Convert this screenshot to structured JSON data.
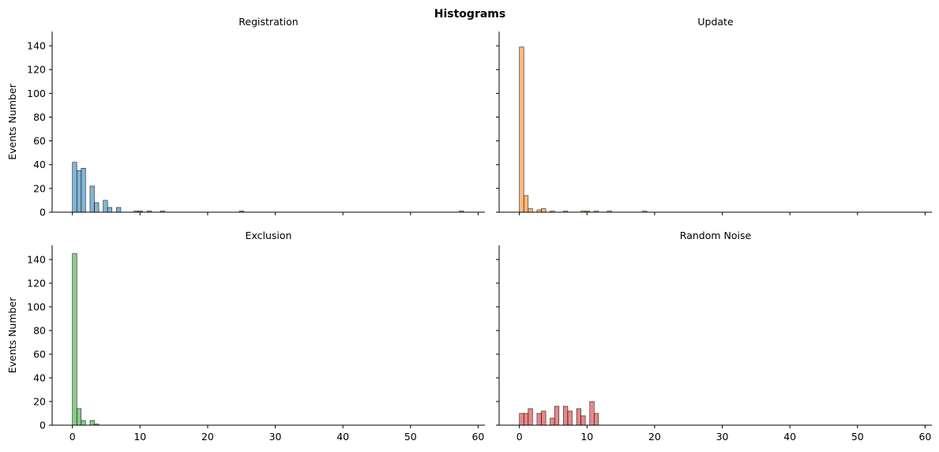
{
  "figure": {
    "title": "Histograms"
  },
  "chart_data": [
    {
      "type": "bar",
      "title": "Registration",
      "ylabel": "Events Number",
      "xlabel": "",
      "xlim": [
        -3,
        61
      ],
      "ylim": [
        0,
        152
      ],
      "xticks": [
        0,
        10,
        20,
        30,
        40,
        50,
        60
      ],
      "yticks": [
        0,
        20,
        40,
        60,
        80,
        100,
        120,
        140
      ],
      "color": "#1f77b4",
      "bin_width": 0.65,
      "bins": [
        {
          "x": 0,
          "count": 42
        },
        {
          "x": 0.65,
          "count": 35
        },
        {
          "x": 1.3,
          "count": 37
        },
        {
          "x": 2.6,
          "count": 22
        },
        {
          "x": 3.25,
          "count": 8
        },
        {
          "x": 4.55,
          "count": 10
        },
        {
          "x": 5.2,
          "count": 4
        },
        {
          "x": 6.5,
          "count": 4
        },
        {
          "x": 9.1,
          "count": 1
        },
        {
          "x": 9.75,
          "count": 1
        },
        {
          "x": 11.05,
          "count": 1
        },
        {
          "x": 13.0,
          "count": 1
        },
        {
          "x": 24.7,
          "count": 1
        },
        {
          "x": 57.2,
          "count": 1
        }
      ]
    },
    {
      "type": "bar",
      "title": "Update",
      "ylabel": "",
      "xlabel": "",
      "xlim": [
        -3,
        61
      ],
      "ylim": [
        0,
        152
      ],
      "xticks": [
        0,
        10,
        20,
        30,
        40,
        50,
        60
      ],
      "yticks": [
        0,
        20,
        40,
        60,
        80,
        100,
        120,
        140
      ],
      "color": "#ff7f0e",
      "bin_width": 0.65,
      "bins": [
        {
          "x": 0,
          "count": 139
        },
        {
          "x": 0.65,
          "count": 14
        },
        {
          "x": 1.3,
          "count": 3
        },
        {
          "x": 2.6,
          "count": 2
        },
        {
          "x": 3.25,
          "count": 3
        },
        {
          "x": 4.55,
          "count": 1
        },
        {
          "x": 6.5,
          "count": 1
        },
        {
          "x": 9.1,
          "count": 1
        },
        {
          "x": 9.75,
          "count": 1
        },
        {
          "x": 11.05,
          "count": 1
        },
        {
          "x": 13.0,
          "count": 1
        },
        {
          "x": 18.2,
          "count": 1
        }
      ]
    },
    {
      "type": "bar",
      "title": "Exclusion",
      "ylabel": "Events Number",
      "xlabel": "",
      "xlim": [
        -3,
        61
      ],
      "ylim": [
        0,
        152
      ],
      "xticks": [
        0,
        10,
        20,
        30,
        40,
        50,
        60
      ],
      "yticks": [
        0,
        20,
        40,
        60,
        80,
        100,
        120,
        140
      ],
      "color": "#2ca02c",
      "bin_width": 0.65,
      "bins": [
        {
          "x": 0,
          "count": 145
        },
        {
          "x": 0.65,
          "count": 14
        },
        {
          "x": 1.3,
          "count": 4
        },
        {
          "x": 2.6,
          "count": 4
        },
        {
          "x": 3.25,
          "count": 1
        }
      ]
    },
    {
      "type": "bar",
      "title": "Random Noise",
      "ylabel": "",
      "xlabel": "",
      "xlim": [
        -3,
        61
      ],
      "ylim": [
        0,
        152
      ],
      "xticks": [
        0,
        10,
        20,
        30,
        40,
        50,
        60
      ],
      "yticks": [
        0,
        20,
        40,
        60,
        80,
        100,
        120,
        140
      ],
      "color": "#d62728",
      "bin_width": 0.65,
      "bins": [
        {
          "x": 0,
          "count": 10
        },
        {
          "x": 0.65,
          "count": 10
        },
        {
          "x": 1.3,
          "count": 14
        },
        {
          "x": 2.6,
          "count": 10
        },
        {
          "x": 3.25,
          "count": 12
        },
        {
          "x": 4.55,
          "count": 6
        },
        {
          "x": 5.2,
          "count": 16
        },
        {
          "x": 6.5,
          "count": 16
        },
        {
          "x": 7.15,
          "count": 12
        },
        {
          "x": 8.45,
          "count": 14
        },
        {
          "x": 9.1,
          "count": 8
        },
        {
          "x": 10.4,
          "count": 20
        },
        {
          "x": 11.05,
          "count": 10
        }
      ]
    }
  ]
}
